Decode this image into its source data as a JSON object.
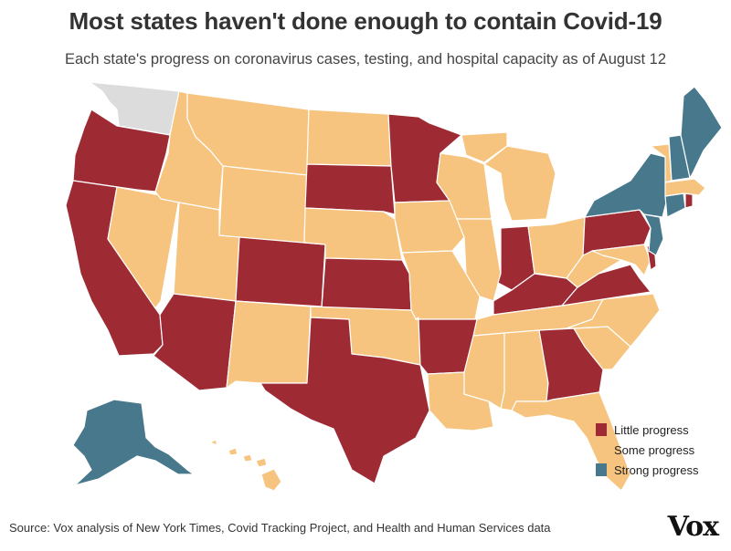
{
  "title": "Most states haven't done enough to contain Covid-19",
  "subtitle": "Each state's progress on coronavirus cases, testing, and hospital capacity as of August 12",
  "colors": {
    "little": "#9e2a34",
    "some": "#f6c47e",
    "strong": "#47788c",
    "nodata": "#dcdcdc",
    "border": "#ffffff"
  },
  "legend": [
    {
      "key": "little",
      "label": "Little progress"
    },
    {
      "key": "some",
      "label": "Some progress"
    },
    {
      "key": "strong",
      "label": "Strong progress"
    }
  ],
  "states": {
    "WA": "nodata",
    "OR": "little",
    "CA": "little",
    "AZ": "little",
    "CO": "little",
    "SD": "little",
    "MN": "little",
    "KS": "little",
    "TX": "little",
    "AR": "little",
    "IN": "little",
    "KY": "little",
    "VA": "little",
    "PA": "little",
    "GA": "little",
    "DE": "little",
    "ID": "some",
    "NV": "some",
    "MT": "some",
    "WY": "some",
    "UT": "some",
    "NM": "some",
    "ND": "some",
    "NE": "some",
    "OK": "some",
    "IA": "some",
    "MO": "some",
    "WI": "some",
    "IL": "some",
    "MI": "some",
    "OH": "some",
    "WV": "some",
    "TN": "some",
    "MS": "some",
    "AL": "some",
    "LA": "some",
    "FL": "some",
    "SC": "some",
    "NC": "some",
    "MD": "some",
    "VT": "some",
    "MA": "some",
    "HI": "some",
    "NY": "strong",
    "NJ": "strong",
    "CT": "strong",
    "ME": "strong",
    "NH": "strong",
    "AK": "strong",
    "RI": "little"
  },
  "source": "Source: Vox analysis of New York Times, Covid Tracking Project, and Health and Human Services data",
  "logo": "Vox"
}
